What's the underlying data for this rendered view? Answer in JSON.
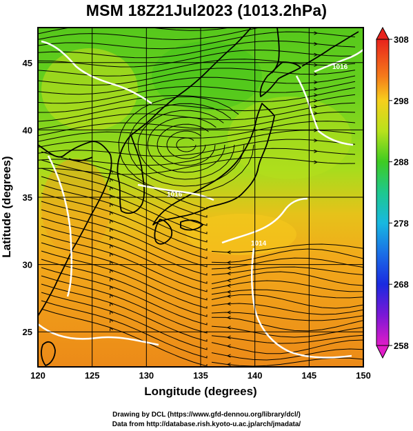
{
  "title": "MSM 18Z21Jul2023 (1013.2hPa)",
  "axes": {
    "xlabel": "Longitude (degrees)",
    "ylabel": "Latitude  (degrees)",
    "xlim": [
      120,
      150
    ],
    "ylim": [
      22.4,
      47.6
    ],
    "xticks": [
      "120",
      "125",
      "130",
      "135",
      "140",
      "145",
      "150"
    ],
    "yticks": [
      "25",
      "30",
      "35",
      "40",
      "45"
    ]
  },
  "colorbar": {
    "range": [
      258,
      308
    ],
    "labels": [
      "308",
      "298",
      "288",
      "278",
      "268",
      "258"
    ]
  },
  "isobar_labels": [
    "1016",
    "1014",
    "1016"
  ],
  "credits": {
    "line1": "Drawing by DCL (https://www.gfd-dennou.org/library/dcl/)",
    "line2": "Data from http://database.rish.kyoto-u.ac.jp/arch/jmadata/"
  },
  "colors": {
    "map_green": "#5ccf1e",
    "map_yellow": "#c8e11a",
    "map_orange": "#f0a51a",
    "map_deep_orange": "#ec8a18",
    "isobar": "#ffffff",
    "streamline": "#000000"
  }
}
